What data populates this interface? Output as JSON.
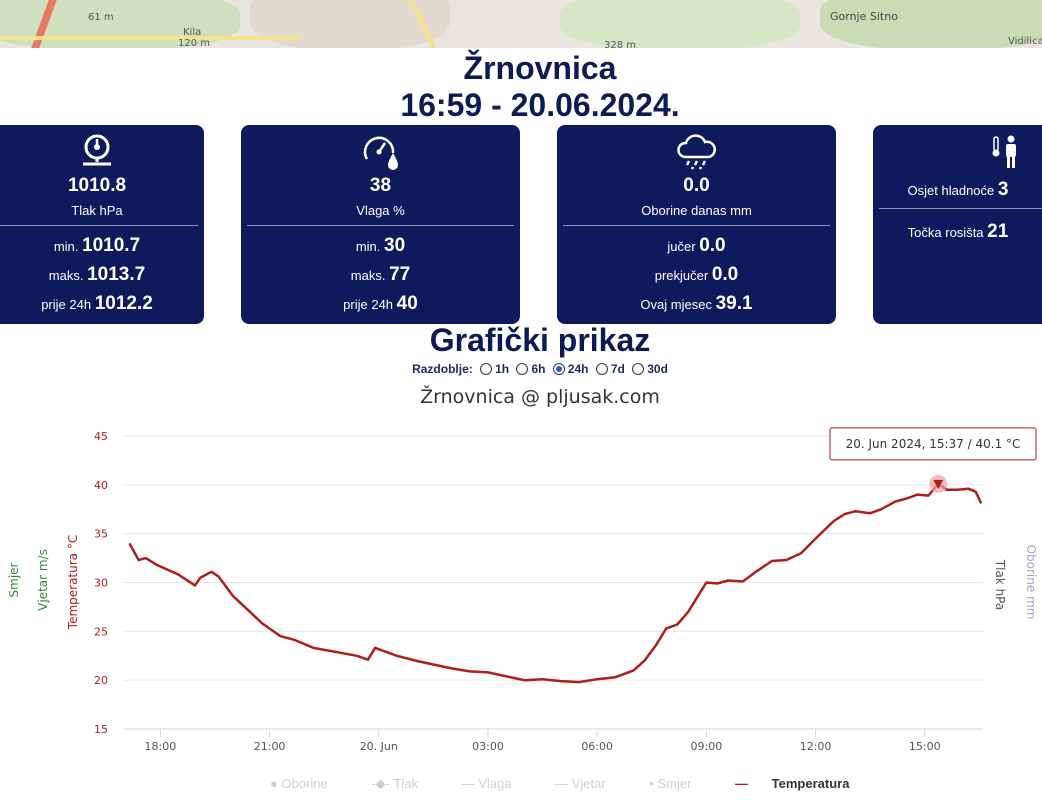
{
  "map": {
    "labels": [
      "61 m",
      "Kila",
      "120 m",
      "328 m",
      "Gornje Sitno",
      "Vidilica"
    ]
  },
  "header": {
    "station": "Žrnovnica",
    "datetime": "16:59 - 20.06.2024."
  },
  "cards": {
    "pressure": {
      "icon": "pressure-gauge-icon",
      "value": "1010.8",
      "label": "Tlak hPa",
      "stats": [
        {
          "label": "min.",
          "value": "1010.7"
        },
        {
          "label": "maks.",
          "value": "1013.7"
        },
        {
          "label": "prije 24h",
          "value": "1012.2"
        }
      ]
    },
    "humidity": {
      "icon": "humidity-gauge-icon",
      "value": "38",
      "label": "Vlaga %",
      "stats": [
        {
          "label": "min.",
          "value": "30"
        },
        {
          "label": "maks.",
          "value": "77"
        },
        {
          "label": "prije 24h",
          "value": "40"
        }
      ]
    },
    "rain": {
      "icon": "rain-cloud-icon",
      "value": "0.0",
      "label": "Oborine danas mm",
      "stats": [
        {
          "label": "jučer",
          "value": "0.0"
        },
        {
          "label": "prekjučer",
          "value": "0.0"
        },
        {
          "label": "Ovaj mjesec",
          "value": "39.1"
        }
      ]
    },
    "feels": {
      "icon": "thermometer-person-icon",
      "stats": [
        {
          "label": "Osjet hladnoće",
          "value": "3"
        },
        {
          "label": "Točka rosišta",
          "value": "21"
        }
      ]
    }
  },
  "graph": {
    "section_title": "Grafički prikaz",
    "period_label": "Razdoblje:",
    "periods": [
      "1h",
      "6h",
      "24h",
      "7d",
      "30d"
    ],
    "selected_period": "24h",
    "chart_title": "Žrnovnica @ pljusak.com",
    "tooltip": "20. Jun 2024, 15:37 / 40.1 °C",
    "legend": [
      "Oborine",
      "Tlak",
      "Vlaga",
      "Vjetar",
      "Smjer",
      "Temperatura"
    ],
    "active_legend": "Temperatura",
    "colors": {
      "temperature": "#b01c1c",
      "wind": "#2e8b2e",
      "right_axis": "#9aa6c8"
    }
  },
  "chart_data": {
    "type": "line",
    "title": "Žrnovnica @ pljusak.com",
    "ylabel": "Temperatura °C",
    "axis_labels": {
      "left": [
        "Smjer",
        "Vjetar m/s",
        "Temperatura °C"
      ],
      "right": [
        "Tlak hPa",
        "Oborine mm"
      ]
    },
    "ylim": [
      15,
      45
    ],
    "yticks": [
      15,
      20,
      25,
      30,
      35,
      40,
      45
    ],
    "xlim": [
      -7,
      16.6
    ],
    "xticks": [
      {
        "x": -6,
        "label": "18:00"
      },
      {
        "x": -3,
        "label": "21:00"
      },
      {
        "x": 0,
        "label": "20. Jun"
      },
      {
        "x": 3,
        "label": "03:00"
      },
      {
        "x": 6,
        "label": "06:00"
      },
      {
        "x": 9,
        "label": "09:00"
      },
      {
        "x": 12,
        "label": "12:00"
      },
      {
        "x": 15,
        "label": "15:00"
      }
    ],
    "series": [
      {
        "name": "Temperatura",
        "unit": "°C",
        "x": [
          -6.85,
          -6.6,
          -6.4,
          -6.1,
          -5.5,
          -5.05,
          -4.9,
          -4.6,
          -4.4,
          -4.0,
          -3.6,
          -3.2,
          -2.7,
          -2.3,
          -1.8,
          -1.2,
          -0.6,
          -0.3,
          -0.1,
          0.5,
          1.0,
          1.5,
          2.0,
          2.5,
          3.0,
          3.5,
          4.0,
          4.5,
          5.0,
          5.5,
          6.0,
          6.5,
          7.0,
          7.3,
          7.6,
          7.9,
          8.2,
          8.5,
          8.8,
          9.0,
          9.3,
          9.6,
          10.0,
          10.4,
          10.8,
          11.2,
          11.6,
          12.0,
          12.5,
          12.8,
          13.1,
          13.5,
          13.8,
          14.2,
          14.5,
          14.8,
          15.1,
          15.37,
          15.6,
          15.9,
          16.2,
          16.4,
          16.55
        ],
        "y": [
          34.0,
          32.3,
          32.5,
          31.8,
          30.8,
          29.7,
          30.5,
          31.1,
          30.6,
          28.6,
          27.2,
          25.8,
          24.5,
          24.1,
          23.3,
          22.9,
          22.5,
          22.1,
          23.3,
          22.5,
          22.0,
          21.6,
          21.2,
          20.9,
          20.8,
          20.4,
          20.0,
          20.1,
          19.9,
          19.8,
          20.1,
          20.3,
          21.0,
          22.0,
          23.5,
          25.3,
          25.7,
          27.0,
          28.8,
          30.0,
          29.9,
          30.2,
          30.1,
          31.2,
          32.2,
          32.3,
          33.0,
          34.5,
          36.3,
          37.0,
          37.3,
          37.1,
          37.5,
          38.3,
          38.6,
          39.0,
          38.9,
          40.1,
          39.5,
          39.5,
          39.6,
          39.3,
          38.1
        ]
      }
    ],
    "highlight": {
      "x": 15.37,
      "y": 40.1
    },
    "grid": true,
    "legend_position": "bottom"
  }
}
